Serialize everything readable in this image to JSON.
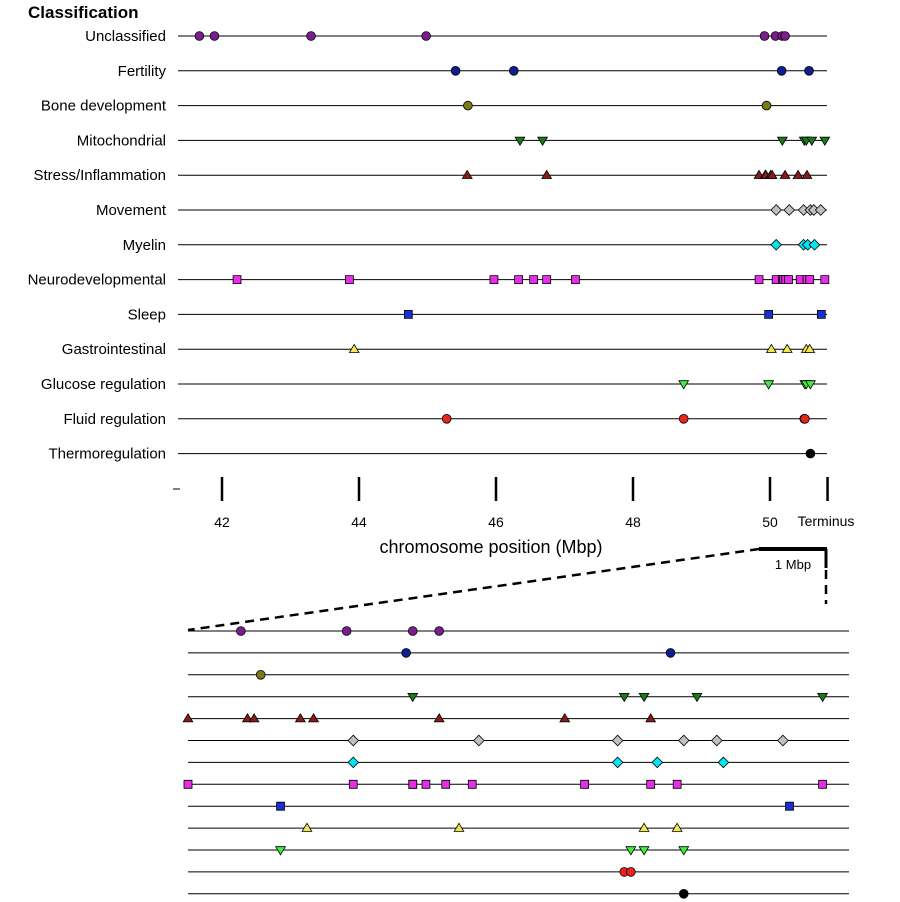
{
  "chart_data": {
    "type": "scatter",
    "title": "Classification",
    "xlabel": "chromosome position (Mbp)",
    "x_ticks": [
      42,
      44,
      46,
      48,
      50
    ],
    "x_end_label": "Terminus",
    "xlim": [
      41.4,
      50.8
    ],
    "terminus": 50.84,
    "zoom": {
      "scale_label": "1 Mbp",
      "xlim": [
        49.84,
        50.84
      ]
    },
    "categories": [
      "Unclassified",
      "Fertility",
      "Bone development",
      "Mitochondrial",
      "Stress/Inflammation",
      "Movement",
      "Myelin",
      "Neurodevelopmental",
      "Sleep",
      "Gastrointestinal",
      "Glucose regulation",
      "Fluid regulation",
      "Thermoregulation"
    ],
    "series": [
      {
        "marker": "circle",
        "color": "#7a1e8c",
        "x": [
          41.67,
          41.89,
          43.3,
          44.98,
          49.92,
          50.08,
          50.18,
          50.22
        ]
      },
      {
        "marker": "circle",
        "color": "#0f1f8f",
        "x": [
          45.41,
          46.26,
          50.17,
          50.57
        ]
      },
      {
        "marker": "circle",
        "color": "#7b7a1a",
        "x": [
          45.59,
          49.95
        ]
      },
      {
        "marker": "triangle-down",
        "color": "#1a7a1a",
        "x": [
          46.35,
          46.68,
          50.18,
          50.5,
          50.53,
          50.61,
          50.8
        ]
      },
      {
        "marker": "triangle-up",
        "color": "#8a1a1a",
        "x": [
          45.58,
          46.74,
          49.84,
          49.93,
          49.94,
          50.01,
          50.03,
          50.22,
          50.41,
          50.54
        ]
      },
      {
        "marker": "diamond",
        "color": "#c0c0c0",
        "x": [
          50.09,
          50.28,
          50.49,
          50.59,
          50.64,
          50.74
        ]
      },
      {
        "marker": "diamond",
        "color": "#00e5ee",
        "x": [
          50.09,
          50.49,
          50.55,
          50.65
        ]
      },
      {
        "marker": "square",
        "color": "#e52ee5",
        "x": [
          42.22,
          43.86,
          45.97,
          46.33,
          46.55,
          46.74,
          47.16,
          49.84,
          50.09,
          50.18,
          50.18,
          50.2,
          50.23,
          50.27,
          50.44,
          50.54,
          50.58,
          50.8
        ]
      },
      {
        "marker": "square",
        "color": "#1a2ed6",
        "x": [
          44.72,
          49.98,
          50.75
        ]
      },
      {
        "marker": "triangle-up",
        "color": "#f5e84a",
        "x": [
          43.93,
          50.02,
          50.25,
          50.53,
          50.58
        ]
      },
      {
        "marker": "triangle-down",
        "color": "#3cf03c",
        "x": [
          48.74,
          49.98,
          50.51,
          50.53,
          50.59
        ]
      },
      {
        "marker": "circle",
        "color": "#e8251a",
        "x": [
          45.28,
          48.74,
          50.5,
          50.51
        ]
      },
      {
        "marker": "circle",
        "color": "#000000",
        "x": [
          50.59
        ]
      }
    ]
  }
}
